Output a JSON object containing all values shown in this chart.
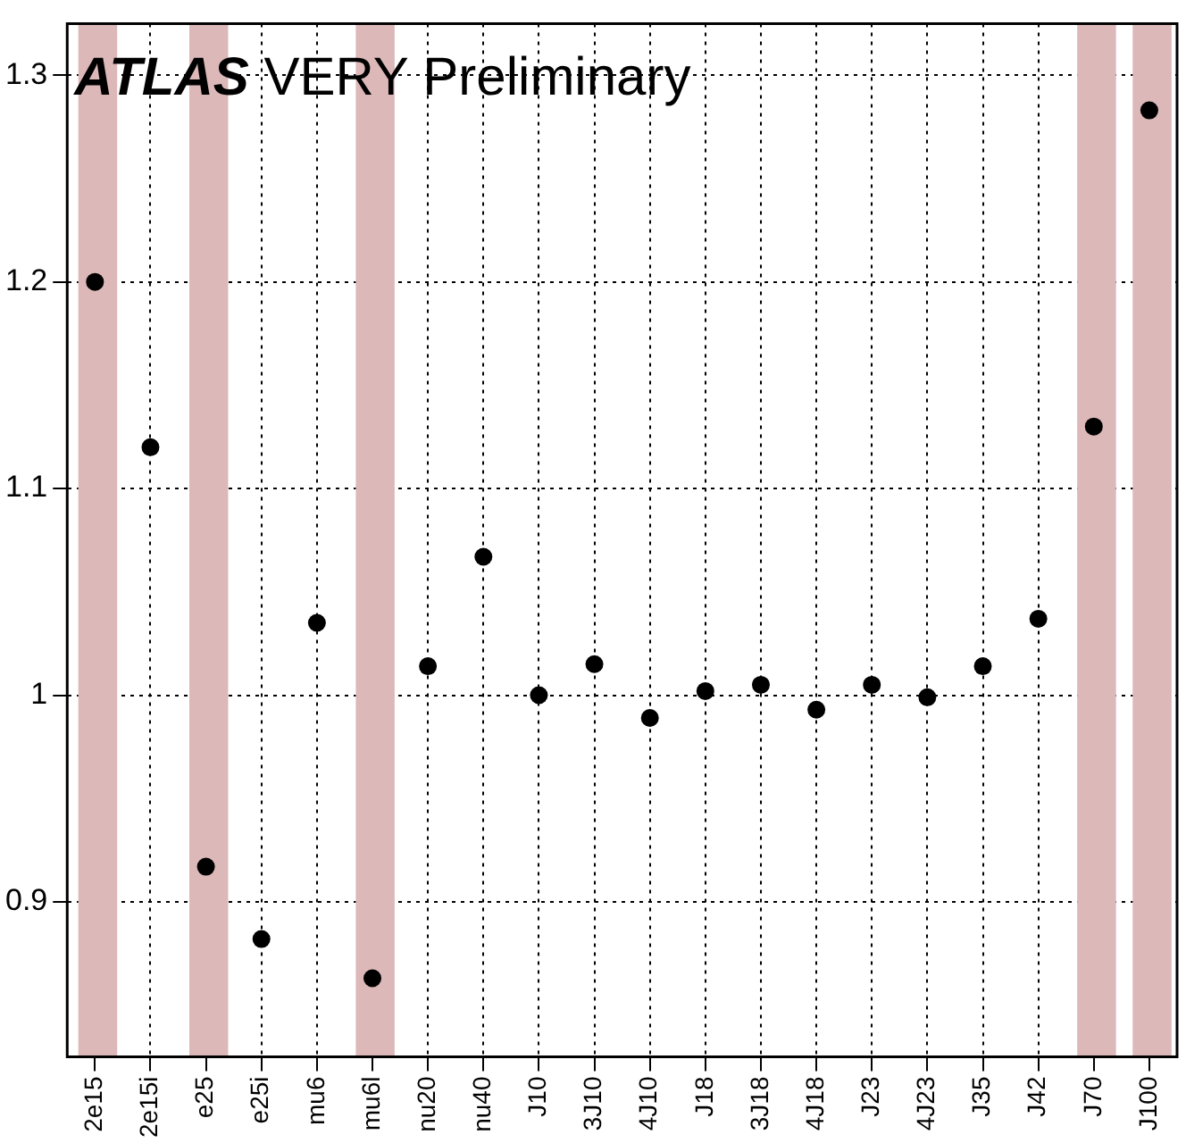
{
  "chart_data": {
    "type": "scatter",
    "title": "ATLAS VERY Preliminary",
    "categories": [
      "2e15",
      "2e15i",
      "e25",
      "e25i",
      "mu6",
      "mu6l",
      "nu20",
      "nu40",
      "J10",
      "3J10",
      "4J10",
      "J18",
      "3J18",
      "4J18",
      "J23",
      "4J23",
      "J35",
      "J42",
      "J70",
      "J100"
    ],
    "series": [
      {
        "color": "#000000",
        "values": [
          1.2,
          1.12,
          0.917,
          0.882,
          1.035,
          0.863,
          1.014,
          1.067,
          1.0,
          1.015,
          0.989,
          1.002,
          1.005,
          0.993,
          1.005,
          0.999,
          1.014,
          1.037,
          1.13,
          1.283
        ]
      }
    ],
    "bands": [
      {
        "axis": "x",
        "from": "2e15",
        "to": "2e15",
        "color": "#dcb8b8"
      },
      {
        "axis": "x",
        "from": "e25",
        "to": "e25",
        "color": "#dcb8b8"
      },
      {
        "axis": "x",
        "from": "mu6l",
        "to": "mu6l",
        "color": "#dcb8b8"
      },
      {
        "axis": "x",
        "from": "J70",
        "to": "J70",
        "color": "#dcb8b8"
      },
      {
        "axis": "x",
        "from": "J100",
        "to": "J100",
        "color": "#dcb8b8"
      }
    ],
    "ylim": [
      0.825,
      1.325
    ],
    "yticks": [
      0.9,
      1,
      1.1,
      1.2,
      1.3
    ],
    "grid": true,
    "marker": "circle",
    "legend": false
  }
}
